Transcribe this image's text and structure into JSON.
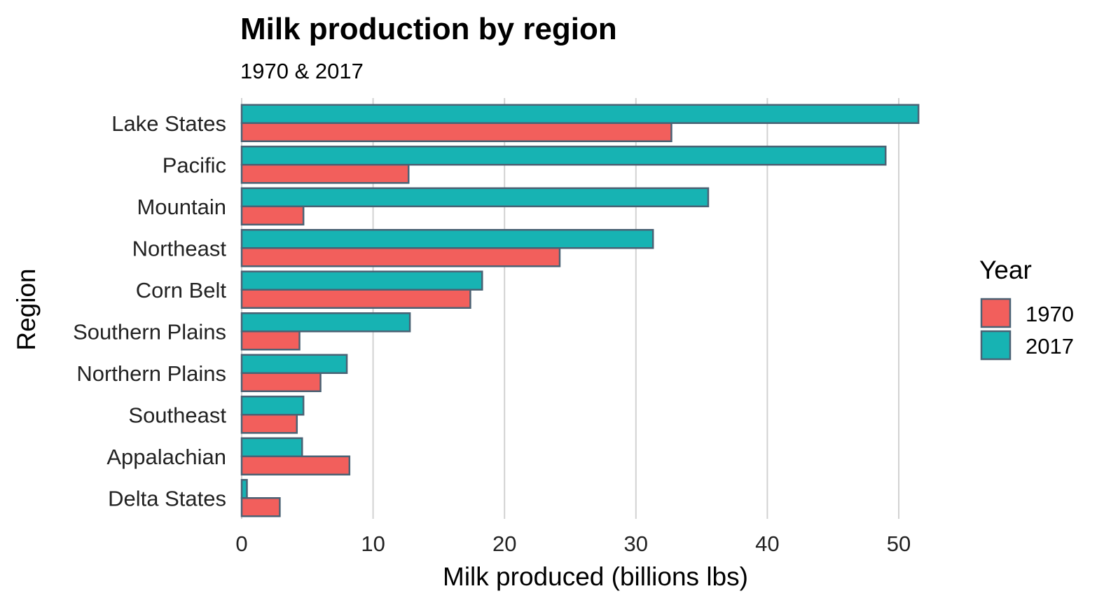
{
  "chart_data": {
    "type": "bar",
    "orientation": "horizontal",
    "title": "Milk production by region",
    "subtitle": "1970 & 2017",
    "xlabel": "Milk produced (billions lbs)",
    "ylabel": "Region",
    "xlim": [
      0,
      53.5
    ],
    "xticks": [
      "0",
      "10",
      "20",
      "30",
      "40",
      "50"
    ],
    "xtick_values": [
      0,
      10,
      20,
      30,
      40,
      50
    ],
    "categories": [
      "Lake States",
      "Pacific",
      "Mountain",
      "Northeast",
      "Corn Belt",
      "Southern Plains",
      "Northern Plains",
      "Southeast",
      "Appalachian",
      "Delta States"
    ],
    "series": [
      {
        "name": "1970",
        "color": "#F25F5C",
        "values": [
          32.7,
          12.7,
          4.7,
          24.2,
          17.4,
          4.4,
          6.0,
          4.2,
          8.2,
          2.9
        ]
      },
      {
        "name": "2017",
        "color": "#17B3B3",
        "values": [
          51.5,
          49.0,
          35.5,
          31.3,
          18.3,
          12.8,
          8.0,
          4.7,
          4.6,
          0.4
        ]
      }
    ],
    "legend_title": "Year",
    "legend_position": "right",
    "grid": "vertical major lines",
    "bar_outline_color": "#4A6274"
  }
}
